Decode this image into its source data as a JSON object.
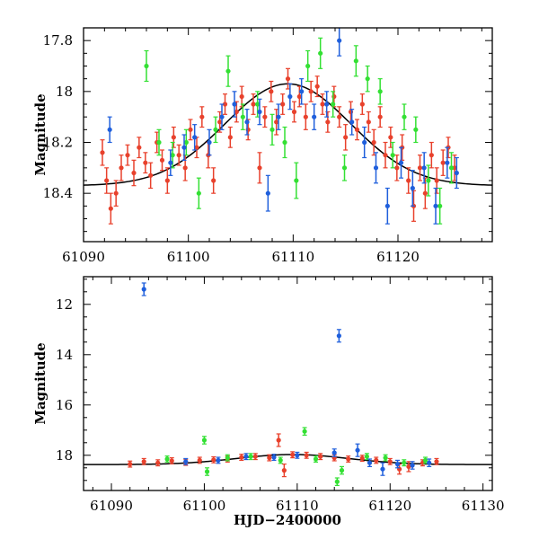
{
  "chart_data": [
    {
      "type": "scatter",
      "title": "",
      "xlabel": "",
      "ylabel": "Magnitude",
      "xlim": [
        61090,
        61129
      ],
      "ylim": [
        17.75,
        18.59
      ],
      "y_inverted": true,
      "xticks": [
        61090,
        61100,
        61110,
        61120
      ],
      "xtick_labels": [
        "61090",
        "61100",
        "61110",
        "61120"
      ],
      "yticks": [
        17.8,
        18,
        18.2,
        18.4
      ],
      "ytick_labels": [
        "17.8",
        "18",
        "18.2",
        "18.4"
      ],
      "model_curve": {
        "peak_x": 61109.5,
        "peak_mag": 17.97,
        "base_mag": 18.37,
        "width_days": 8.5,
        "color": "#000000"
      },
      "series": [
        {
          "name": "red",
          "color": "#e8412c",
          "points": [
            [
              61091.8,
              18.24,
              0.05
            ],
            [
              61092.2,
              18.35,
              0.05
            ],
            [
              61092.6,
              18.46,
              0.06
            ],
            [
              61093.1,
              18.4,
              0.05
            ],
            [
              61093.6,
              18.3,
              0.05
            ],
            [
              61094.2,
              18.25,
              0.04
            ],
            [
              61094.8,
              18.32,
              0.05
            ],
            [
              61095.3,
              18.22,
              0.04
            ],
            [
              61095.9,
              18.28,
              0.04
            ],
            [
              61096.4,
              18.33,
              0.05
            ],
            [
              61097.0,
              18.2,
              0.04
            ],
            [
              61097.5,
              18.27,
              0.04
            ],
            [
              61098.0,
              18.35,
              0.05
            ],
            [
              61098.6,
              18.18,
              0.04
            ],
            [
              61099.1,
              18.25,
              0.04
            ],
            [
              61099.7,
              18.3,
              0.05
            ],
            [
              61100.2,
              18.15,
              0.04
            ],
            [
              61100.8,
              18.22,
              0.04
            ],
            [
              61101.3,
              18.1,
              0.04
            ],
            [
              61101.9,
              18.25,
              0.05
            ],
            [
              61102.4,
              18.35,
              0.05
            ],
            [
              61103.0,
              18.12,
              0.04
            ],
            [
              61103.5,
              18.05,
              0.04
            ],
            [
              61104.0,
              18.18,
              0.04
            ],
            [
              61104.6,
              18.08,
              0.04
            ],
            [
              61105.1,
              18.02,
              0.04
            ],
            [
              61105.7,
              18.15,
              0.04
            ],
            [
              61106.2,
              18.05,
              0.04
            ],
            [
              61106.8,
              18.3,
              0.06
            ],
            [
              61107.3,
              18.1,
              0.04
            ],
            [
              61107.9,
              18.0,
              0.04
            ],
            [
              61108.4,
              18.12,
              0.05
            ],
            [
              61109.0,
              18.05,
              0.04
            ],
            [
              61109.5,
              17.95,
              0.04
            ],
            [
              61110.1,
              18.08,
              0.04
            ],
            [
              61110.6,
              18.02,
              0.04
            ],
            [
              61111.2,
              18.1,
              0.05
            ],
            [
              61111.7,
              18.0,
              0.04
            ],
            [
              61112.3,
              17.98,
              0.04
            ],
            [
              61112.8,
              18.05,
              0.04
            ],
            [
              61113.3,
              18.12,
              0.04
            ],
            [
              61113.9,
              18.02,
              0.04
            ],
            [
              61114.4,
              18.1,
              0.04
            ],
            [
              61115.0,
              18.18,
              0.05
            ],
            [
              61115.5,
              18.08,
              0.04
            ],
            [
              61116.1,
              18.15,
              0.04
            ],
            [
              61116.6,
              18.05,
              0.04
            ],
            [
              61117.2,
              18.12,
              0.04
            ],
            [
              61117.7,
              18.2,
              0.05
            ],
            [
              61118.3,
              18.1,
              0.04
            ],
            [
              61118.8,
              18.25,
              0.05
            ],
            [
              61119.3,
              18.18,
              0.04
            ],
            [
              61119.9,
              18.3,
              0.05
            ],
            [
              61120.4,
              18.22,
              0.05
            ],
            [
              61121.0,
              18.35,
              0.05
            ],
            [
              61121.5,
              18.45,
              0.06
            ],
            [
              61122.1,
              18.3,
              0.05
            ],
            [
              61122.6,
              18.4,
              0.06
            ],
            [
              61123.2,
              18.25,
              0.05
            ],
            [
              61123.7,
              18.35,
              0.05
            ],
            [
              61124.3,
              18.28,
              0.05
            ],
            [
              61124.8,
              18.22,
              0.04
            ],
            [
              61125.4,
              18.3,
              0.05
            ]
          ]
        },
        {
          "name": "green",
          "color": "#33e033",
          "points": [
            [
              61096.0,
              17.9,
              0.06
            ],
            [
              61097.2,
              18.2,
              0.05
            ],
            [
              61098.5,
              18.25,
              0.05
            ],
            [
              61099.8,
              18.2,
              0.05
            ],
            [
              61101.0,
              18.4,
              0.06
            ],
            [
              61102.6,
              18.15,
              0.05
            ],
            [
              61103.8,
              17.92,
              0.06
            ],
            [
              61105.2,
              18.1,
              0.05
            ],
            [
              61106.6,
              18.05,
              0.05
            ],
            [
              61108.0,
              18.15,
              0.06
            ],
            [
              61109.2,
              18.2,
              0.06
            ],
            [
              61110.3,
              18.35,
              0.07
            ],
            [
              61111.4,
              17.9,
              0.06
            ],
            [
              61112.6,
              17.85,
              0.06
            ],
            [
              61113.8,
              18.05,
              0.05
            ],
            [
              61114.9,
              18.3,
              0.05
            ],
            [
              61116.0,
              17.88,
              0.06
            ],
            [
              61117.1,
              17.95,
              0.05
            ],
            [
              61118.3,
              18.0,
              0.05
            ],
            [
              61119.5,
              18.25,
              0.05
            ],
            [
              61120.6,
              18.1,
              0.05
            ],
            [
              61121.7,
              18.15,
              0.05
            ],
            [
              61122.9,
              18.35,
              0.06
            ],
            [
              61124.0,
              18.45,
              0.07
            ],
            [
              61125.1,
              18.3,
              0.06
            ]
          ]
        },
        {
          "name": "blue",
          "color": "#1f5fdc",
          "points": [
            [
              61092.5,
              18.15,
              0.05
            ],
            [
              61098.3,
              18.28,
              0.05
            ],
            [
              61099.6,
              18.22,
              0.05
            ],
            [
              61100.6,
              18.18,
              0.05
            ],
            [
              61102.0,
              18.2,
              0.05
            ],
            [
              61103.2,
              18.1,
              0.05
            ],
            [
              61104.4,
              18.05,
              0.05
            ],
            [
              61105.6,
              18.12,
              0.05
            ],
            [
              61106.8,
              18.08,
              0.05
            ],
            [
              61107.6,
              18.4,
              0.07
            ],
            [
              61108.6,
              18.1,
              0.05
            ],
            [
              61109.7,
              18.02,
              0.05
            ],
            [
              61110.8,
              18.0,
              0.05
            ],
            [
              61112.0,
              18.1,
              0.05
            ],
            [
              61113.2,
              18.05,
              0.05
            ],
            [
              61114.4,
              17.8,
              0.06
            ],
            [
              61115.6,
              18.12,
              0.05
            ],
            [
              61116.8,
              18.2,
              0.06
            ],
            [
              61117.9,
              18.3,
              0.06
            ],
            [
              61119.0,
              18.45,
              0.07
            ],
            [
              61120.3,
              18.28,
              0.06
            ],
            [
              61121.4,
              18.38,
              0.07
            ],
            [
              61122.5,
              18.3,
              0.06
            ],
            [
              61123.6,
              18.45,
              0.07
            ],
            [
              61124.7,
              18.28,
              0.06
            ],
            [
              61125.6,
              18.32,
              0.06
            ]
          ]
        }
      ]
    },
    {
      "type": "scatter",
      "title": "",
      "xlabel": "HJD−2400000",
      "ylabel": "Magnitude",
      "xlim": [
        61087,
        61131
      ],
      "ylim": [
        10.9,
        19.4
      ],
      "y_inverted": true,
      "xticks": [
        61090,
        61100,
        61110,
        61120,
        61130
      ],
      "xtick_labels": [
        "61090",
        "61100",
        "61110",
        "61120",
        "61130"
      ],
      "yticks": [
        12,
        14,
        16,
        18
      ],
      "ytick_labels": [
        "12",
        "14",
        "16",
        "18"
      ],
      "model_curve": {
        "peak_x": 61109.5,
        "peak_mag": 17.97,
        "base_mag": 18.37,
        "width_days": 8.5,
        "color": "#000000"
      },
      "series": [
        {
          "name": "red",
          "color": "#e8412c",
          "points": [
            [
              61092.0,
              18.35,
              0.12
            ],
            [
              61093.5,
              18.25,
              0.12
            ],
            [
              61095.0,
              18.3,
              0.12
            ],
            [
              61096.5,
              18.22,
              0.12
            ],
            [
              61098.0,
              18.28,
              0.12
            ],
            [
              61099.5,
              18.2,
              0.12
            ],
            [
              61101.0,
              18.18,
              0.12
            ],
            [
              61102.5,
              18.15,
              0.12
            ],
            [
              61104.0,
              18.08,
              0.12
            ],
            [
              61105.5,
              18.05,
              0.12
            ],
            [
              61107.0,
              18.1,
              0.12
            ],
            [
              61108.0,
              17.4,
              0.25
            ],
            [
              61108.6,
              18.6,
              0.25
            ],
            [
              61109.5,
              17.98,
              0.12
            ],
            [
              61111.0,
              18.0,
              0.12
            ],
            [
              61112.5,
              18.05,
              0.12
            ],
            [
              61114.0,
              18.1,
              0.12
            ],
            [
              61115.5,
              18.15,
              0.12
            ],
            [
              61117.0,
              18.12,
              0.12
            ],
            [
              61118.5,
              18.2,
              0.12
            ],
            [
              61120.0,
              18.25,
              0.12
            ],
            [
              61121.0,
              18.55,
              0.2
            ],
            [
              61122.0,
              18.45,
              0.2
            ],
            [
              61123.5,
              18.3,
              0.12
            ],
            [
              61125.0,
              18.25,
              0.12
            ]
          ]
        },
        {
          "name": "green",
          "color": "#33e033",
          "points": [
            [
              61096.0,
              18.15,
              0.12
            ],
            [
              61100.0,
              17.4,
              0.15
            ],
            [
              61100.3,
              18.65,
              0.15
            ],
            [
              61102.5,
              18.1,
              0.12
            ],
            [
              61105.0,
              18.05,
              0.12
            ],
            [
              61108.2,
              18.2,
              0.12
            ],
            [
              61110.8,
              17.05,
              0.15
            ],
            [
              61112.0,
              18.15,
              0.12
            ],
            [
              61114.3,
              19.05,
              0.15
            ],
            [
              61114.8,
              18.6,
              0.15
            ],
            [
              61117.5,
              18.05,
              0.12
            ],
            [
              61119.5,
              18.1,
              0.12
            ],
            [
              61121.5,
              18.3,
              0.12
            ],
            [
              61123.8,
              18.2,
              0.12
            ]
          ]
        },
        {
          "name": "blue",
          "color": "#1f5fdc",
          "points": [
            [
              61093.5,
              11.4,
              0.25
            ],
            [
              61098.0,
              18.25,
              0.12
            ],
            [
              61101.5,
              18.2,
              0.12
            ],
            [
              61104.5,
              18.05,
              0.12
            ],
            [
              61107.5,
              18.08,
              0.12
            ],
            [
              61110.0,
              18.0,
              0.12
            ],
            [
              61114.5,
              13.25,
              0.25
            ],
            [
              61114.0,
              17.9,
              0.15
            ],
            [
              61116.5,
              17.8,
              0.25
            ],
            [
              61117.8,
              18.3,
              0.15
            ],
            [
              61119.2,
              18.55,
              0.25
            ],
            [
              61120.8,
              18.35,
              0.15
            ],
            [
              61122.4,
              18.4,
              0.15
            ],
            [
              61124.2,
              18.3,
              0.15
            ]
          ]
        }
      ]
    }
  ]
}
